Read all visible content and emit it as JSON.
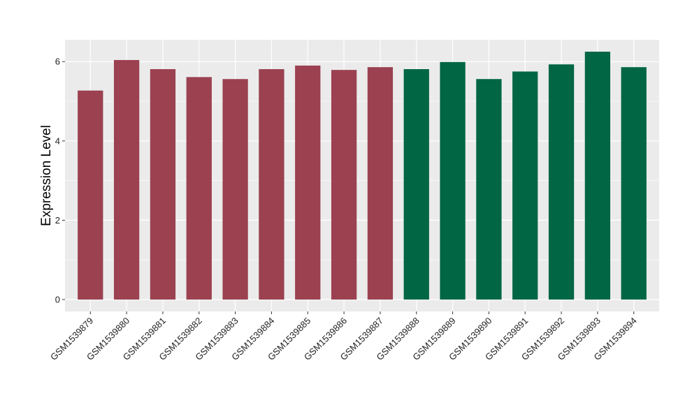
{
  "chart_data": {
    "type": "bar",
    "title": "",
    "xlabel": "",
    "ylabel": "Expression Level",
    "ylim": [
      -0.3,
      6.55
    ],
    "yticks": [
      0,
      2,
      4,
      6
    ],
    "grid": true,
    "legend": "none",
    "categories": [
      "GSM1539879",
      "GSM1539880",
      "GSM1539881",
      "GSM1539882",
      "GSM1539883",
      "GSM1539884",
      "GSM1539885",
      "GSM1539886",
      "GSM1539887",
      "GSM1539888",
      "GSM1539889",
      "GSM1539890",
      "GSM1539891",
      "GSM1539892",
      "GSM1539893",
      "GSM1539894"
    ],
    "values": [
      5.27,
      6.04,
      5.81,
      5.61,
      5.56,
      5.81,
      5.9,
      5.79,
      5.86,
      5.81,
      5.99,
      5.56,
      5.75,
      5.93,
      6.25,
      5.86
    ],
    "groups": [
      1,
      1,
      1,
      1,
      1,
      1,
      1,
      1,
      1,
      2,
      2,
      2,
      2,
      2,
      2,
      2
    ],
    "group_colors": {
      "1": "#9b4150",
      "2": "#006644"
    },
    "panel_background": "#ebebeb",
    "gridline_color": "#ffffff"
  }
}
